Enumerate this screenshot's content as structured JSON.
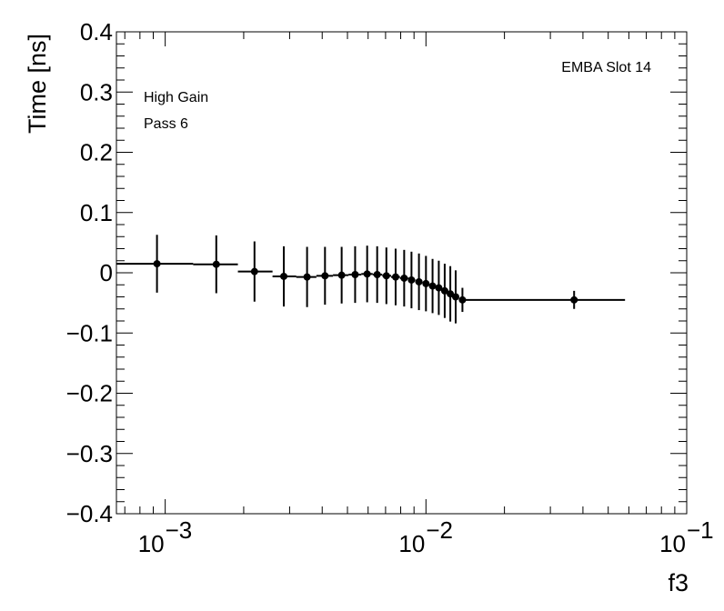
{
  "chart_data": {
    "type": "scatter",
    "style": "error-bars-with-horizontal-bin-width",
    "xscale": "log",
    "xlim": [
      0.00065,
      0.1
    ],
    "ylim": [
      -0.4,
      0.4
    ],
    "xlabel": "f3",
    "ylabel": "Time [ns]",
    "x_ticks": [
      {
        "value": 0.001,
        "base": "10",
        "exp": "−3"
      },
      {
        "value": 0.01,
        "base": "10",
        "exp": "−2"
      },
      {
        "value": 0.1,
        "base": "10",
        "exp": "−1"
      }
    ],
    "y_ticks": [
      {
        "value": 0.4,
        "label": "0.4"
      },
      {
        "value": 0.3,
        "label": "0.3"
      },
      {
        "value": 0.2,
        "label": "0.2"
      },
      {
        "value": 0.1,
        "label": "0.1"
      },
      {
        "value": 0,
        "label": "0"
      },
      {
        "value": -0.1,
        "label": "−0.1"
      },
      {
        "value": -0.2,
        "label": "−0.2"
      },
      {
        "value": -0.3,
        "label": "−0.3"
      },
      {
        "value": -0.4,
        "label": "−0.4"
      }
    ],
    "series": [
      {
        "name": "High Gain Pass 6",
        "points": [
          {
            "x": 0.00093,
            "xlo": 0.00065,
            "xhi": 0.00128,
            "y": 0.015,
            "err": 0.048
          },
          {
            "x": 0.00157,
            "xlo": 0.00128,
            "xhi": 0.0019,
            "y": 0.014,
            "err": 0.048
          },
          {
            "x": 0.0022,
            "xlo": 0.0019,
            "xhi": 0.00258,
            "y": 0.002,
            "err": 0.05
          },
          {
            "x": 0.00285,
            "xlo": 0.00258,
            "xhi": 0.00318,
            "y": -0.006,
            "err": 0.05
          },
          {
            "x": 0.0035,
            "xlo": 0.00318,
            "xhi": 0.0038,
            "y": -0.007,
            "err": 0.05
          },
          {
            "x": 0.0041,
            "xlo": 0.0038,
            "xhi": 0.0044,
            "y": -0.005,
            "err": 0.048
          },
          {
            "x": 0.00475,
            "xlo": 0.0044,
            "xhi": 0.00505,
            "y": -0.004,
            "err": 0.047
          },
          {
            "x": 0.00535,
            "xlo": 0.00505,
            "xhi": 0.00565,
            "y": -0.003,
            "err": 0.047
          },
          {
            "x": 0.00595,
            "xlo": 0.00565,
            "xhi": 0.00625,
            "y": -0.002,
            "err": 0.047
          },
          {
            "x": 0.0065,
            "xlo": 0.00625,
            "xhi": 0.0068,
            "y": -0.003,
            "err": 0.047
          },
          {
            "x": 0.00705,
            "xlo": 0.0068,
            "xhi": 0.00735,
            "y": -0.005,
            "err": 0.047
          },
          {
            "x": 0.00765,
            "xlo": 0.00735,
            "xhi": 0.00795,
            "y": -0.007,
            "err": 0.047
          },
          {
            "x": 0.00825,
            "xlo": 0.00795,
            "xhi": 0.00855,
            "y": -0.009,
            "err": 0.047
          },
          {
            "x": 0.0088,
            "xlo": 0.00855,
            "xhi": 0.0091,
            "y": -0.012,
            "err": 0.047
          },
          {
            "x": 0.0094,
            "xlo": 0.0091,
            "xhi": 0.0097,
            "y": -0.015,
            "err": 0.047
          },
          {
            "x": 0.01,
            "xlo": 0.0097,
            "xhi": 0.0103,
            "y": -0.018,
            "err": 0.046
          },
          {
            "x": 0.0106,
            "xlo": 0.0103,
            "xhi": 0.0109,
            "y": -0.022,
            "err": 0.045
          },
          {
            "x": 0.0112,
            "xlo": 0.0109,
            "xhi": 0.0115,
            "y": -0.025,
            "err": 0.045
          },
          {
            "x": 0.0118,
            "xlo": 0.0115,
            "xhi": 0.0121,
            "y": -0.03,
            "err": 0.045
          },
          {
            "x": 0.0124,
            "xlo": 0.0121,
            "xhi": 0.0127,
            "y": -0.035,
            "err": 0.046
          },
          {
            "x": 0.013,
            "xlo": 0.0127,
            "xhi": 0.0134,
            "y": -0.04,
            "err": 0.044
          },
          {
            "x": 0.0138,
            "xlo": 0.0134,
            "xhi": 0.0142,
            "y": -0.045,
            "err": 0.02
          },
          {
            "x": 0.037,
            "xlo": 0.0142,
            "xhi": 0.058,
            "y": -0.045,
            "err": 0.015
          }
        ]
      }
    ],
    "annotations": {
      "gain": "High Gain",
      "pass": "Pass 6",
      "slot": "EMBA Slot 14"
    }
  }
}
